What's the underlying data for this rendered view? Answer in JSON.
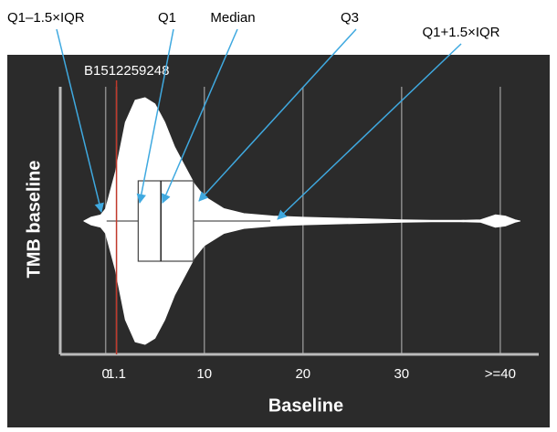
{
  "chart_data": {
    "type": "violin",
    "x_label": "Baseline",
    "y_label": "TMB baseline",
    "xlim": [
      -4.6,
      43.9
    ],
    "xticks": [
      0,
      1.1,
      10,
      20,
      30,
      {
        "value": 40,
        "label": ">=40"
      }
    ],
    "grid": true,
    "violin": {
      "color": "#ffffff",
      "x": [
        -2.2,
        -1.5,
        -0.5,
        0,
        1,
        2,
        3,
        4,
        5,
        6,
        7,
        8,
        9,
        10,
        12,
        14,
        17,
        20,
        25,
        30,
        33,
        36,
        38,
        39.5,
        40.5,
        41.5,
        42
      ],
      "width": [
        0,
        0.03,
        0.05,
        0.1,
        0.4,
        0.8,
        0.98,
        1.0,
        0.95,
        0.8,
        0.6,
        0.45,
        0.3,
        0.2,
        0.1,
        0.06,
        0.04,
        0.03,
        0.02,
        0.01,
        0.005,
        0.005,
        0.01,
        0.05,
        0.04,
        0.01,
        0
      ]
    },
    "box": {
      "whisker_low": 0.1,
      "q1": 3.3,
      "median": 5.6,
      "q3": 8.9,
      "whisker_high": 16.7
    },
    "marker": {
      "label": "B1512259248",
      "value": 1.1,
      "color": "#c0392b"
    },
    "annotations": [
      "Q1–1.5×IQR",
      "Q1",
      "Median",
      "Q3",
      "Q1+1.5×IQR"
    ]
  }
}
